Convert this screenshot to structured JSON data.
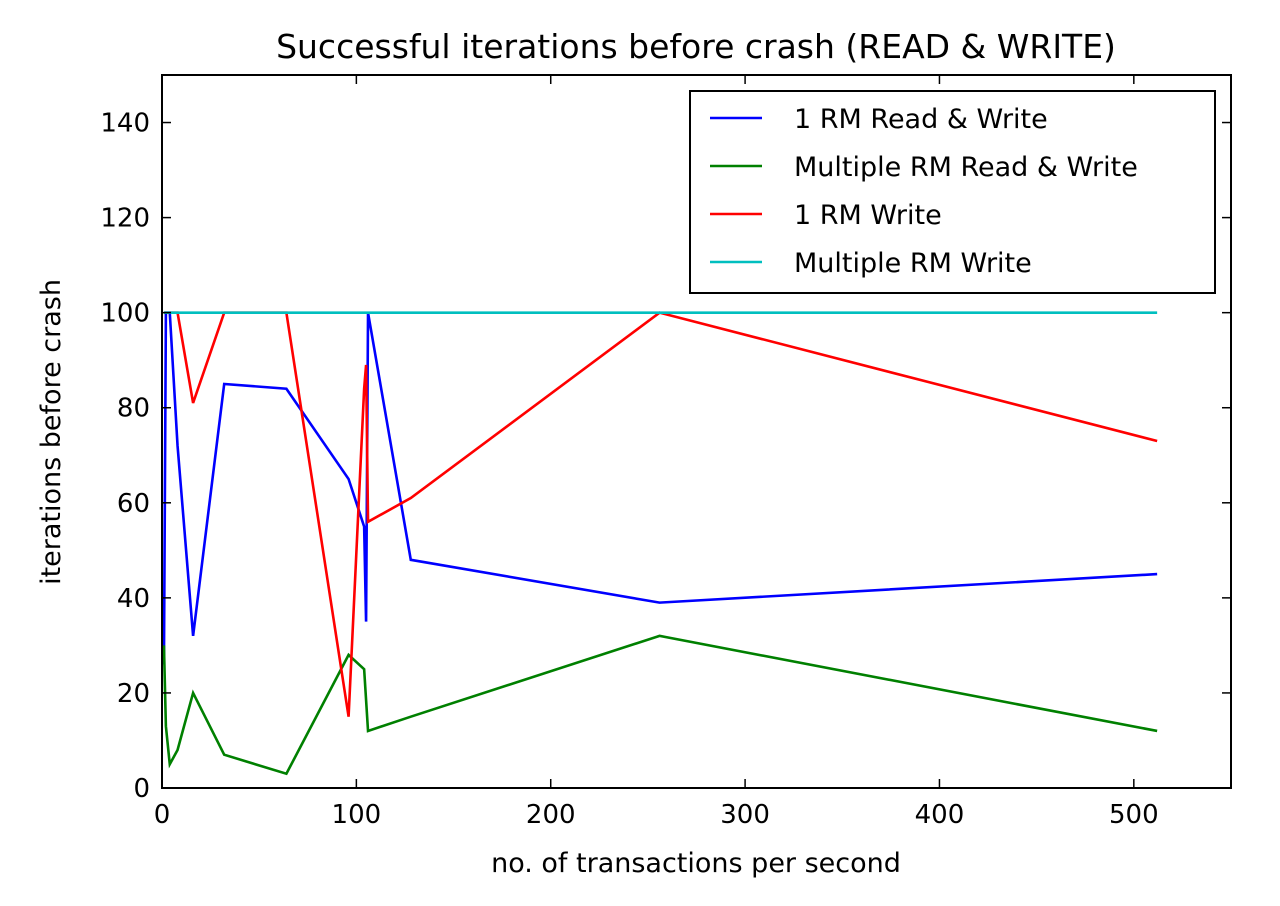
{
  "chart_data": {
    "type": "line",
    "title": "Successful iterations before crash (READ & WRITE)",
    "xlabel": "no. of transactions per second",
    "ylabel": "iterations before crash",
    "xlim": [
      0,
      550
    ],
    "ylim": [
      0,
      150
    ],
    "xticks": [
      0,
      100,
      200,
      300,
      400,
      500
    ],
    "yticks": [
      0,
      20,
      40,
      60,
      80,
      100,
      120,
      140
    ],
    "grid": false,
    "legend_position": "upper right",
    "series": [
      {
        "name": "1 RM Read & Write",
        "color": "#0000ff",
        "points": [
          [
            1,
            26
          ],
          [
            2,
            100
          ],
          [
            4,
            100
          ],
          [
            8,
            72
          ],
          [
            16,
            32
          ],
          [
            32,
            85
          ],
          [
            64,
            84
          ],
          [
            96,
            65
          ],
          [
            104,
            55
          ],
          [
            105,
            35
          ],
          [
            106,
            100
          ],
          [
            128,
            48
          ],
          [
            256,
            39
          ],
          [
            512,
            45
          ]
        ]
      },
      {
        "name": "Multiple RM Read & Write",
        "color": "#008000",
        "points": [
          [
            1,
            30
          ],
          [
            2,
            13
          ],
          [
            4,
            5
          ],
          [
            8,
            8
          ],
          [
            16,
            20
          ],
          [
            32,
            7
          ],
          [
            64,
            3
          ],
          [
            96,
            28
          ],
          [
            104,
            25
          ],
          [
            106,
            12
          ],
          [
            128,
            15
          ],
          [
            256,
            32
          ],
          [
            512,
            12
          ]
        ]
      },
      {
        "name": "1 RM Write",
        "color": "#ff0000",
        "points": [
          [
            1,
            100
          ],
          [
            2,
            100
          ],
          [
            8,
            100
          ],
          [
            16,
            81
          ],
          [
            32,
            100
          ],
          [
            64,
            100
          ],
          [
            96,
            15
          ],
          [
            104,
            84
          ],
          [
            105,
            89
          ],
          [
            106,
            56
          ],
          [
            128,
            61
          ],
          [
            256,
            100
          ],
          [
            512,
            73
          ]
        ]
      },
      {
        "name": "Multiple RM Write",
        "color": "#00bfbf",
        "points": [
          [
            1,
            100
          ],
          [
            512,
            100
          ]
        ]
      }
    ]
  }
}
